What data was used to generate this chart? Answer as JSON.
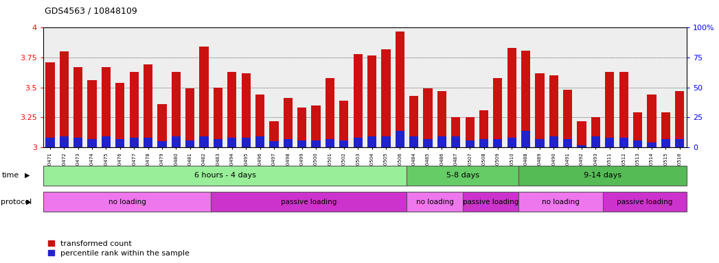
{
  "title": "GDS4563 / 10848109",
  "samples": [
    "GSM930471",
    "GSM930472",
    "GSM930473",
    "GSM930474",
    "GSM930475",
    "GSM930476",
    "GSM930477",
    "GSM930478",
    "GSM930479",
    "GSM930480",
    "GSM930481",
    "GSM930482",
    "GSM930483",
    "GSM930494",
    "GSM930495",
    "GSM930496",
    "GSM930497",
    "GSM930498",
    "GSM930499",
    "GSM930500",
    "GSM930501",
    "GSM930502",
    "GSM930503",
    "GSM930504",
    "GSM930505",
    "GSM930506",
    "GSM930484",
    "GSM930485",
    "GSM930486",
    "GSM930487",
    "GSM930507",
    "GSM930508",
    "GSM930509",
    "GSM930510",
    "GSM930488",
    "GSM930489",
    "GSM930490",
    "GSM930491",
    "GSM930492",
    "GSM930493",
    "GSM930511",
    "GSM930512",
    "GSM930513",
    "GSM930514",
    "GSM930515",
    "GSM930516"
  ],
  "red_values": [
    3.71,
    3.8,
    3.67,
    3.56,
    3.67,
    3.54,
    3.63,
    3.69,
    3.36,
    3.63,
    3.49,
    3.84,
    3.5,
    3.63,
    3.62,
    3.44,
    3.22,
    3.41,
    3.33,
    3.35,
    3.58,
    3.39,
    3.78,
    3.77,
    3.82,
    3.97,
    3.43,
    3.49,
    3.47,
    3.25,
    3.25,
    3.31,
    3.58,
    3.83,
    3.81,
    3.62,
    3.6,
    3.48,
    3.22,
    3.25,
    3.63,
    3.63,
    3.29,
    3.44,
    3.29,
    3.47
  ],
  "blue_percentile": [
    8,
    9,
    8,
    7,
    9,
    7,
    8,
    8,
    5,
    9,
    6,
    9,
    7,
    8,
    8,
    9,
    5,
    7,
    6,
    6,
    7,
    6,
    8,
    9,
    9,
    14,
    9,
    7,
    9,
    9,
    6,
    7,
    7,
    8,
    14,
    7,
    9,
    7,
    2,
    9,
    8,
    8,
    6,
    4,
    7,
    7
  ],
  "ylim_left": [
    3.0,
    4.0
  ],
  "ylim_right": [
    0,
    100
  ],
  "yticks_left": [
    3.0,
    3.25,
    3.5,
    3.75,
    4.0
  ],
  "yticks_right": [
    0,
    25,
    50,
    75,
    100
  ],
  "bar_width": 0.65,
  "red_color": "#CC1111",
  "blue_color": "#2222CC",
  "base_value": 3.0,
  "time_groups": [
    {
      "label": "6 hours - 4 days",
      "start": 0,
      "end": 26,
      "color": "#99ee99"
    },
    {
      "label": "5-8 days",
      "start": 26,
      "end": 34,
      "color": "#66cc66"
    },
    {
      "label": "9-14 days",
      "start": 34,
      "end": 46,
      "color": "#55bb55"
    }
  ],
  "protocol_groups": [
    {
      "label": "no loading",
      "start": 0,
      "end": 12,
      "color": "#ee77ee"
    },
    {
      "label": "passive loading",
      "start": 12,
      "end": 26,
      "color": "#cc33cc"
    },
    {
      "label": "no loading",
      "start": 26,
      "end": 30,
      "color": "#ee77ee"
    },
    {
      "label": "passive loading",
      "start": 30,
      "end": 34,
      "color": "#cc33cc"
    },
    {
      "label": "no loading",
      "start": 34,
      "end": 40,
      "color": "#ee77ee"
    },
    {
      "label": "passive loading",
      "start": 40,
      "end": 46,
      "color": "#cc33cc"
    }
  ],
  "legend_labels": [
    "transformed count",
    "percentile rank within the sample"
  ],
  "legend_colors": [
    "#CC1111",
    "#2222CC"
  ],
  "bg_color": "#eeeeee"
}
